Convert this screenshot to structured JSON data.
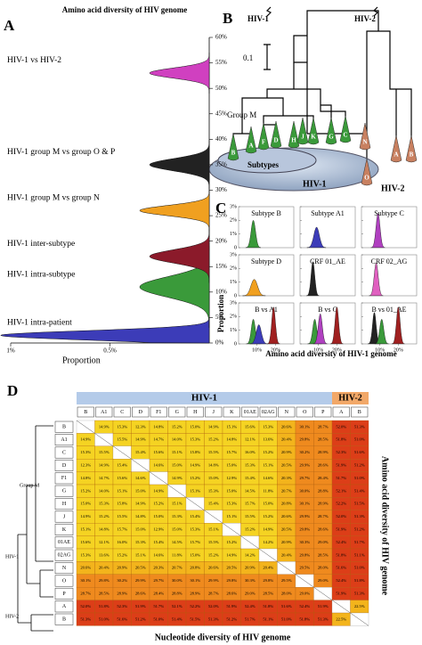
{
  "panel_a": {
    "letter": "A",
    "title": "Amino acid diversity of HIV genome",
    "xlabel": "Proportion",
    "xlim": [
      1,
      0
    ],
    "xticks": [
      {
        "value": 1,
        "label": "1%"
      },
      {
        "value": 0.5,
        "label": "0.5%"
      }
    ],
    "ylim": [
      0,
      60
    ],
    "yticks": [
      {
        "value": 0,
        "label": "0%"
      },
      {
        "value": 5,
        "label": "5%"
      },
      {
        "value": 10,
        "label": "10%"
      },
      {
        "value": 15,
        "label": "15%"
      },
      {
        "value": 20,
        "label": "20%"
      },
      {
        "value": 25,
        "label": "25%"
      },
      {
        "value": 30,
        "label": "30%"
      },
      {
        "value": 35,
        "label": "35%"
      },
      {
        "value": 40,
        "label": "40%"
      },
      {
        "value": 45,
        "label": "45%"
      },
      {
        "value": 50,
        "label": "50%"
      },
      {
        "value": 55,
        "label": "55%"
      },
      {
        "value": 60,
        "label": "60%"
      }
    ],
    "series": [
      {
        "name": "HIV-1 intra-patient",
        "color": "#3c3cb8",
        "at": 1.5,
        "sd": 0.9,
        "peak": 1.05
      },
      {
        "name": "HIV-1 intra-subtype",
        "color": "#3a9a3a",
        "at": 11,
        "sd": 2,
        "peak": 0.35
      },
      {
        "name": "HIV-1 inter-subtype",
        "color": "#8b1a2a",
        "at": 17,
        "sd": 1.3,
        "peak": 0.3
      },
      {
        "name": "HIV-1 group M vs group N",
        "color": "#f0a020",
        "at": 26,
        "sd": 1,
        "peak": 0.35
      },
      {
        "name": "HIV-1 group M vs group O & P",
        "color": "#222222",
        "at": 35,
        "sd": 1.2,
        "peak": 0.3
      },
      {
        "name": "HIV-1 vs HIV-2",
        "color": "#d040c0",
        "at": 53,
        "sd": 1,
        "peak": 0.3
      }
    ]
  },
  "panel_b": {
    "letter": "B",
    "hiv1": "HIV-1",
    "hiv2": "HIV-2",
    "scale": "0.1",
    "group_m": "Group M",
    "subtypes": "Subtypes",
    "disc_hiv1": "HIV-1",
    "disc_hiv2": "HIV-2",
    "tips": [
      "B",
      "A",
      "F",
      "D",
      "H",
      "J",
      "K",
      "G",
      "C",
      "N",
      "O",
      "A",
      "B"
    ]
  },
  "panel_c": {
    "letter": "C",
    "ylabel": "Proportion",
    "xlabel": "Amino acid diversity of HIV-1 genome",
    "xlim": [
      0,
      30
    ],
    "ylim": [
      0,
      3
    ],
    "yticks": [
      0,
      {
        "value": 1,
        "label": "1%"
      },
      {
        "value": 2,
        "label": "2%"
      },
      {
        "value": 3,
        "label": "3%"
      }
    ],
    "xticks": [
      {
        "value": 10,
        "label": "10%"
      },
      {
        "value": 20,
        "label": "20%"
      }
    ],
    "plots": [
      {
        "title": "Subtype B",
        "peaks": [
          {
            "color": "#3a9a3a",
            "at": 8,
            "sd": 1.2,
            "height": 2
          }
        ]
      },
      {
        "title": "Subtype A1",
        "peaks": [
          {
            "color": "#3c3cb8",
            "at": 9,
            "sd": 1.5,
            "height": 1.5
          }
        ]
      },
      {
        "title": "Subtype C",
        "peaks": [
          {
            "color": "#b040c0",
            "at": 9,
            "sd": 1.1,
            "height": 2.5
          }
        ]
      },
      {
        "title": "Subtype D",
        "peaks": [
          {
            "color": "#f0a020",
            "at": 8.5,
            "sd": 1.8,
            "height": 1.2
          }
        ]
      },
      {
        "title": "CRF 01_AE",
        "peaks": [
          {
            "color": "#222222",
            "at": 7,
            "sd": 1,
            "height": 2.5
          }
        ]
      },
      {
        "title": "CRF 02_AG",
        "peaks": [
          {
            "color": "#e060c0",
            "at": 8,
            "sd": 1.1,
            "height": 2.4
          }
        ]
      },
      {
        "title": "B vs A1",
        "peaks": [
          {
            "color": "#3a9a3a",
            "at": 8,
            "sd": 1.1,
            "height": 1.8
          },
          {
            "color": "#3c3cb8",
            "at": 11,
            "sd": 1.4,
            "height": 1.4
          },
          {
            "color": "#a02020",
            "at": 19,
            "sd": 1,
            "height": 2.7
          }
        ]
      },
      {
        "title": "B vs C",
        "peaks": [
          {
            "color": "#3a9a3a",
            "at": 8,
            "sd": 1.1,
            "height": 1.8
          },
          {
            "color": "#b040c0",
            "at": 11,
            "sd": 1.1,
            "height": 2.2
          },
          {
            "color": "#a02020",
            "at": 20,
            "sd": 1,
            "height": 2.7
          }
        ]
      },
      {
        "title": "B vs 01_AE",
        "peaks": [
          {
            "color": "#222222",
            "at": 7,
            "sd": 1,
            "height": 2.3
          },
          {
            "color": "#3a9a3a",
            "at": 11,
            "sd": 1.1,
            "height": 1.8
          },
          {
            "color": "#a02020",
            "at": 20,
            "sd": 1,
            "height": 2.7
          }
        ]
      }
    ]
  },
  "panel_d": {
    "letter": "D",
    "hiv1": "HIV-1",
    "hiv2": "HIV-2",
    "right_label": "Amino acid diversity of HIV genome",
    "bottom_label": "Nucleotide diversity of HIV genome",
    "group_m": "Group M",
    "tree_hiv1": "HIV-1",
    "tree_hiv2": "HIV-2",
    "labels": [
      "B",
      "A1",
      "C",
      "D",
      "F1",
      "G",
      "H",
      "J",
      "K",
      "01AE",
      "02AG",
      "N",
      "O",
      "P",
      "A",
      "B"
    ],
    "cells": [
      [
        null,
        "14.9%",
        "15.3%",
        "12.3%",
        "14.8%",
        "15.2%",
        "15.0%",
        "14.9%",
        "15.1%",
        "15.6%",
        "15.3%",
        "20.6%",
        "30.1%",
        "28.7%",
        "52.0%",
        "51.3%"
      ],
      [
        "14.9%",
        null,
        "15.5%",
        "14.9%",
        "14.7%",
        "14.0%",
        "15.3%",
        "15.2%",
        "14.8%",
        "12.1%",
        "13.6%",
        "20.4%",
        "29.8%",
        "28.5%",
        "51.8%",
        "51.0%"
      ],
      [
        "15.3%",
        "15.5%",
        null,
        "15.4%",
        "15.6%",
        "15.1%",
        "15.8%",
        "15.5%",
        "15.7%",
        "16.0%",
        "15.2%",
        "20.9%",
        "30.2%",
        "28.9%",
        "52.3%",
        "51.6%"
      ],
      [
        "12.3%",
        "14.9%",
        "15.4%",
        null,
        "14.6%",
        "15.0%",
        "14.9%",
        "14.8%",
        "15.0%",
        "15.3%",
        "15.1%",
        "20.5%",
        "29.9%",
        "28.6%",
        "51.9%",
        "51.2%"
      ],
      [
        "14.8%",
        "14.7%",
        "15.6%",
        "14.6%",
        null,
        "14.9%",
        "15.2%",
        "15.0%",
        "12.9%",
        "15.4%",
        "14.6%",
        "20.3%",
        "29.7%",
        "28.4%",
        "51.7%",
        "51.0%"
      ],
      [
        "15.2%",
        "14.0%",
        "15.1%",
        "15.0%",
        "14.9%",
        null,
        "15.1%",
        "15.3%",
        "15.0%",
        "14.5%",
        "11.8%",
        "20.7%",
        "30.0%",
        "28.8%",
        "52.1%",
        "51.4%"
      ],
      [
        "15.0%",
        "15.3%",
        "15.8%",
        "14.9%",
        "15.2%",
        "15.1%",
        null,
        "15.4%",
        "15.3%",
        "15.7%",
        "15.0%",
        "20.8%",
        "30.1%",
        "28.9%",
        "52.2%",
        "51.5%"
      ],
      [
        "14.9%",
        "15.2%",
        "15.5%",
        "14.8%",
        "15.0%",
        "15.3%",
        "15.4%",
        null,
        "15.1%",
        "15.5%",
        "15.2%",
        "20.6%",
        "29.9%",
        "28.7%",
        "52.0%",
        "51.3%"
      ],
      [
        "15.1%",
        "14.8%",
        "15.7%",
        "15.0%",
        "12.9%",
        "15.0%",
        "15.3%",
        "15.1%",
        null,
        "15.2%",
        "14.9%",
        "20.5%",
        "29.8%",
        "28.6%",
        "51.9%",
        "51.2%"
      ],
      [
        "15.6%",
        "12.1%",
        "16.0%",
        "15.3%",
        "15.4%",
        "14.5%",
        "15.7%",
        "15.5%",
        "15.2%",
        null,
        "14.2%",
        "20.9%",
        "30.3%",
        "29.0%",
        "52.4%",
        "51.7%"
      ],
      [
        "15.3%",
        "13.6%",
        "15.2%",
        "15.1%",
        "14.6%",
        "11.8%",
        "15.0%",
        "15.2%",
        "14.9%",
        "14.2%",
        null,
        "20.4%",
        "29.8%",
        "28.5%",
        "51.8%",
        "51.1%"
      ],
      [
        "20.6%",
        "20.4%",
        "20.9%",
        "20.5%",
        "20.3%",
        "20.7%",
        "20.8%",
        "20.6%",
        "20.5%",
        "20.9%",
        "20.4%",
        null,
        "29.5%",
        "28.0%",
        "51.6%",
        "51.0%"
      ],
      [
        "30.1%",
        "29.8%",
        "30.2%",
        "29.9%",
        "29.7%",
        "30.0%",
        "30.1%",
        "29.9%",
        "29.8%",
        "30.3%",
        "29.8%",
        "29.5%",
        null,
        "29.0%",
        "52.4%",
        "51.8%"
      ],
      [
        "28.7%",
        "28.5%",
        "28.9%",
        "28.6%",
        "28.4%",
        "28.8%",
        "28.9%",
        "28.7%",
        "28.6%",
        "29.0%",
        "28.5%",
        "28.0%",
        "29.0%",
        null,
        "51.9%",
        "51.3%"
      ],
      [
        "52.0%",
        "51.8%",
        "52.3%",
        "51.9%",
        "51.7%",
        "52.1%",
        "52.2%",
        "52.0%",
        "51.9%",
        "52.4%",
        "51.8%",
        "51.6%",
        "52.4%",
        "51.9%",
        null,
        "22.5%"
      ],
      [
        "51.3%",
        "51.0%",
        "51.6%",
        "51.2%",
        "51.0%",
        "51.4%",
        "51.5%",
        "51.3%",
        "51.2%",
        "51.7%",
        "51.1%",
        "51.0%",
        "51.8%",
        "51.3%",
        "22.5%",
        null
      ]
    ]
  }
}
